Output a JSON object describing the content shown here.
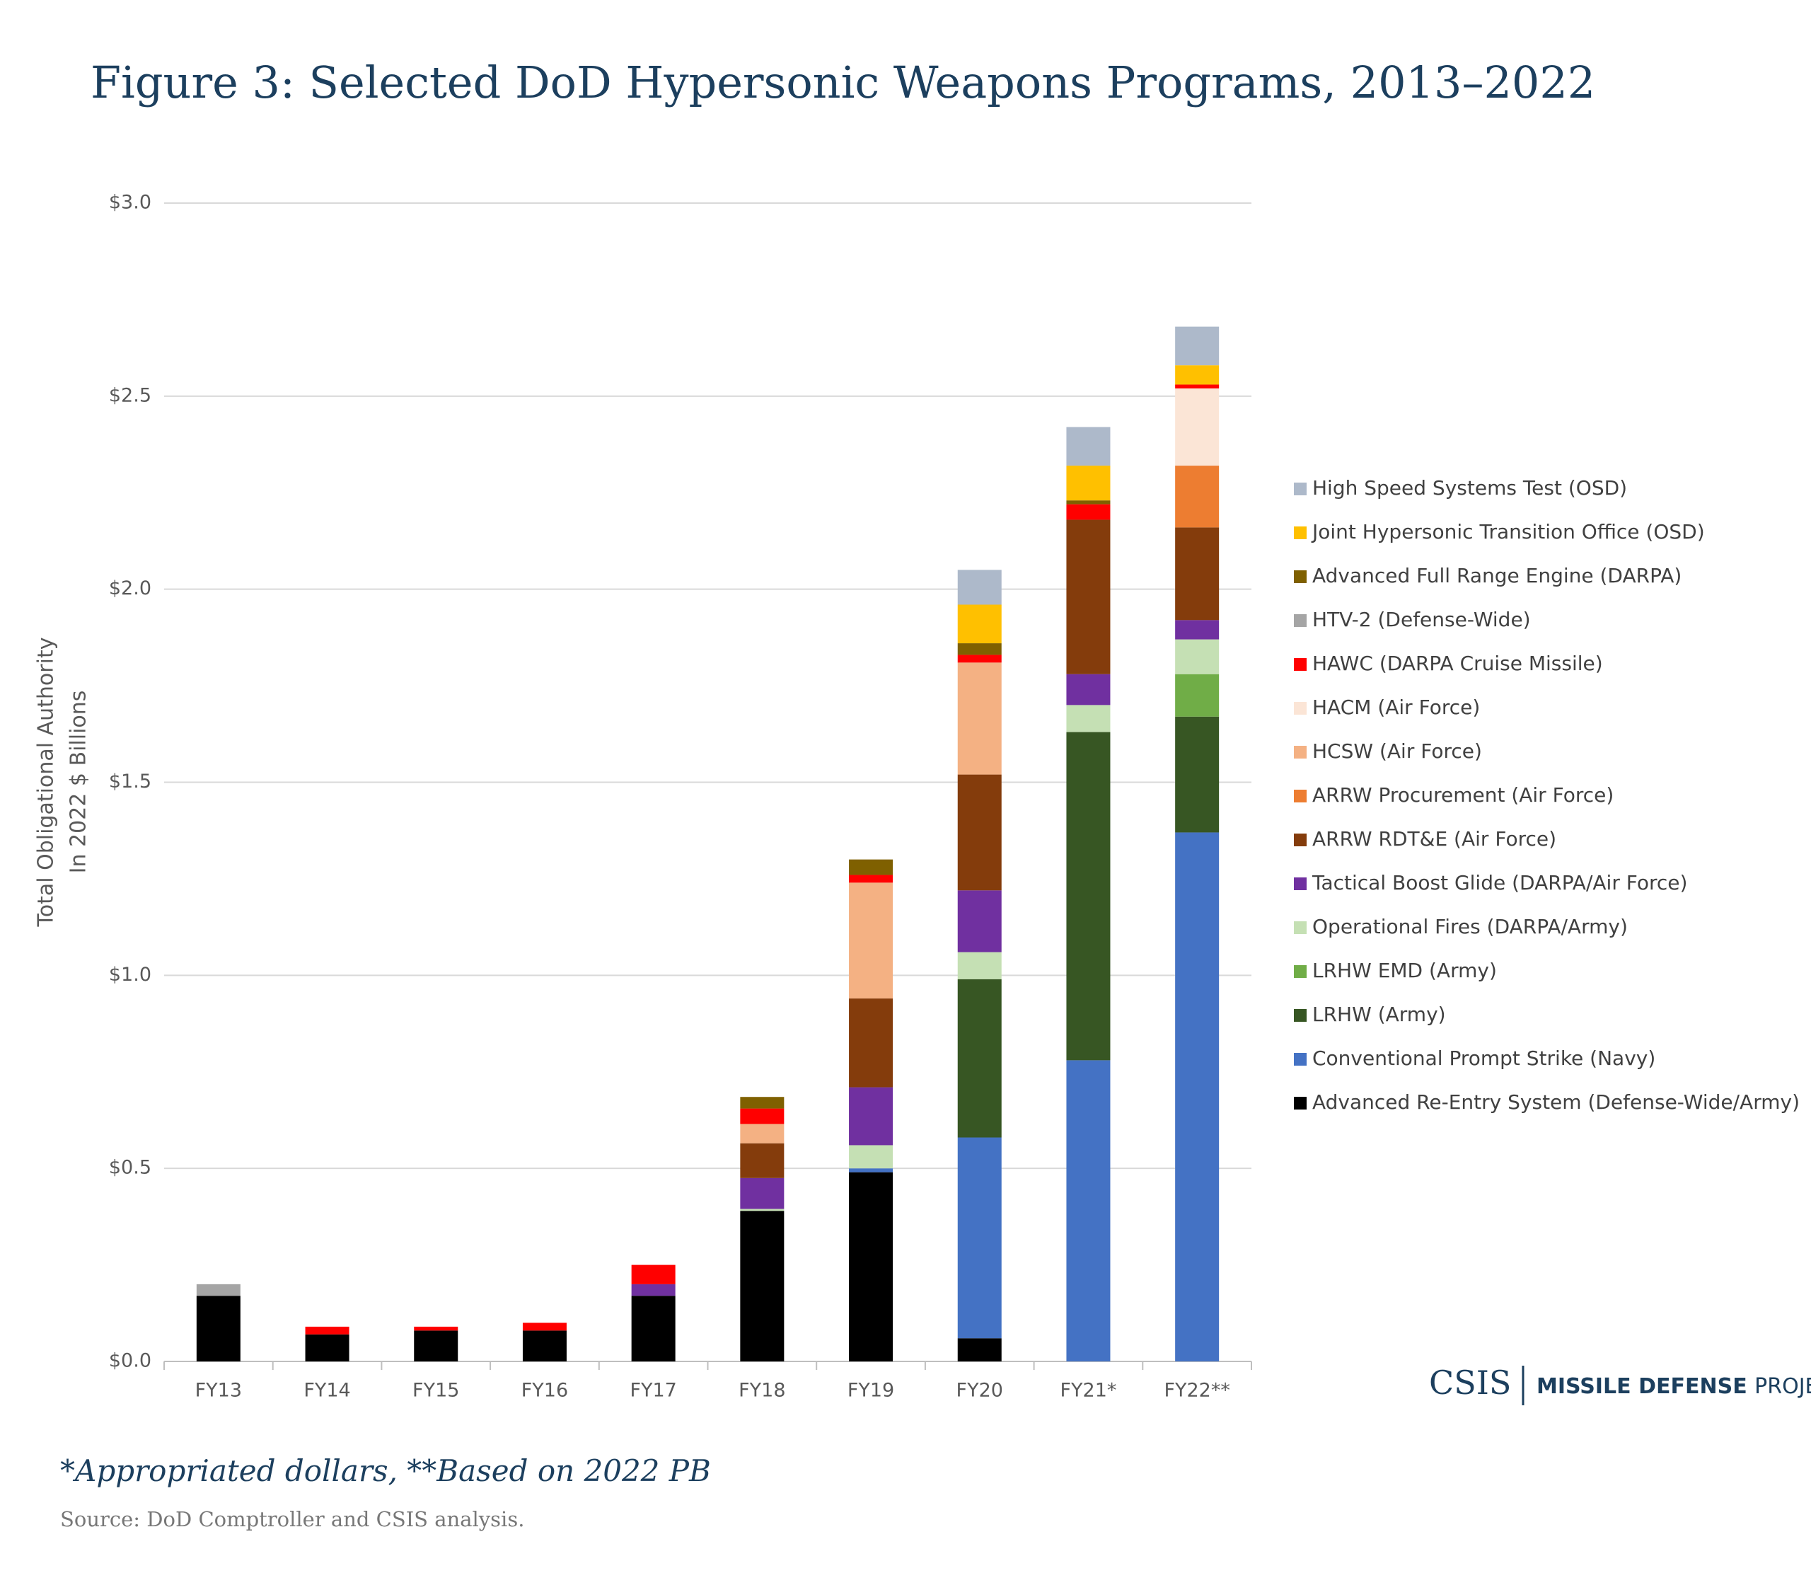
{
  "chart_data": {
    "type": "stacked-bar",
    "title": "Figure 3: Selected DoD Hypersonic Weapons Programs, 2013–2022",
    "y_label": [
      "Total Obligational Authority",
      "In 2022 $ Billions"
    ],
    "categories": [
      "FY13",
      "FY14",
      "FY15",
      "FY16",
      "FY17",
      "FY18",
      "FY19",
      "FY20",
      "FY21*",
      "FY22**"
    ],
    "ylim": [
      0,
      3
    ],
    "yticks": [
      {
        "value": 0,
        "label": "$0.0"
      },
      {
        "value": 0.5,
        "label": "$0.5"
      },
      {
        "value": 1,
        "label": "$1.0"
      },
      {
        "value": 1.5,
        "label": "$1.5"
      },
      {
        "value": 2,
        "label": "$2.0"
      },
      {
        "value": 2.5,
        "label": "$2.5"
      },
      {
        "value": 3,
        "label": "$3.0"
      }
    ],
    "grid": true,
    "legend": "right",
    "series": [
      {
        "name": "Advanced Re-Entry System (Defense-Wide/Army)",
        "color": "#000000",
        "values": [
          0.17,
          0.07,
          0.08,
          0.08,
          0.17,
          0.39,
          0.49,
          0.06,
          0,
          0
        ]
      },
      {
        "name": "Conventional Prompt Strike (Navy)",
        "color": "#4472c4",
        "values": [
          0,
          0,
          0,
          0,
          0,
          0,
          0.01,
          0.52,
          0.78,
          1.37
        ]
      },
      {
        "name": "LRHW (Army)",
        "color": "#375623",
        "values": [
          0,
          0,
          0,
          0,
          0,
          0,
          0,
          0.41,
          0.85,
          0.3
        ]
      },
      {
        "name": "LRHW EMD (Army)",
        "color": "#70ad47",
        "values": [
          0,
          0,
          0,
          0,
          0,
          0,
          0,
          0,
          0,
          0.11
        ]
      },
      {
        "name": "Operational Fires (DARPA/Army)",
        "color": "#c5e0b4",
        "values": [
          0,
          0,
          0,
          0,
          0,
          0.005,
          0.06,
          0.07,
          0.07,
          0.09
        ]
      },
      {
        "name": "Tactical Boost Glide (DARPA/Air Force)",
        "color": "#7030a0",
        "values": [
          0,
          0,
          0,
          0,
          0.03,
          0.08,
          0.15,
          0.16,
          0.08,
          0.05
        ]
      },
      {
        "name": "ARRW RDT&E (Air Force)",
        "color": "#843c0c",
        "values": [
          0,
          0,
          0,
          0,
          0,
          0.09,
          0.23,
          0.3,
          0.4,
          0.24
        ]
      },
      {
        "name": "ARRW Procurement (Air Force)",
        "color": "#ed7d31",
        "values": [
          0,
          0,
          0,
          0,
          0,
          0,
          0,
          0,
          0,
          0.16
        ]
      },
      {
        "name": "HCSW (Air Force)",
        "color": "#f4b183",
        "values": [
          0,
          0,
          0,
          0,
          0,
          0.05,
          0.3,
          0.29,
          0,
          0
        ]
      },
      {
        "name": "HACM (Air Force)",
        "color": "#fbe5d6",
        "values": [
          0,
          0,
          0,
          0,
          0,
          0,
          0,
          0,
          0,
          0.2
        ]
      },
      {
        "name": "HAWC (DARPA Cruise Missile)",
        "color": "#ff0000",
        "values": [
          0,
          0.02,
          0.01,
          0.02,
          0.05,
          0.04,
          0.02,
          0.02,
          0.04,
          0.01
        ]
      },
      {
        "name": "HTV-2 (Defense-Wide)",
        "color": "#a5a5a5",
        "values": [
          0.03,
          0,
          0,
          0,
          0,
          0,
          0,
          0,
          0,
          0
        ]
      },
      {
        "name": "Advanced Full Range Engine (DARPA)",
        "color": "#7f6000",
        "values": [
          0,
          0,
          0,
          0,
          0,
          0.03,
          0.04,
          0.03,
          0.01,
          0
        ]
      },
      {
        "name": "Joint Hypersonic Transition Office (OSD)",
        "color": "#ffc000",
        "values": [
          0,
          0,
          0,
          0,
          0,
          0,
          0,
          0.1,
          0.09,
          0.05
        ]
      },
      {
        "name": "High Speed Systems Test (OSD)",
        "color": "#adb9ca",
        "values": [
          0,
          0,
          0,
          0,
          0,
          0,
          0,
          0.09,
          0.1,
          0.1
        ]
      }
    ]
  },
  "footnote": "*Appropriated dollars, **Based on 2022 PB",
  "source": "Source: DoD Comptroller and CSIS analysis.",
  "logo": {
    "org": "CSIS",
    "project_bold": "MISSILE DEFENSE",
    "project": "PROJECT"
  }
}
